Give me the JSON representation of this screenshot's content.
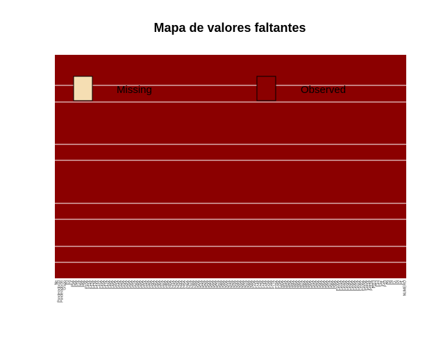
{
  "chart_data": {
    "type": "heatmap",
    "title": "Mapa de valores faltantes",
    "xlabel": "",
    "ylabel": "",
    "legend": {
      "placement": "top",
      "entries": [
        {
          "label": "Missing",
          "color": "#f5deb3"
        },
        {
          "label": "Observed",
          "color": "#8b0000"
        }
      ]
    },
    "colors": {
      "missing": "#f5deb3",
      "observed": "#8b0000",
      "separator": "#ffffff"
    },
    "columns": [
      "Ne",
      "Ponderador33",
      "Ponderador36",
      "Grupo",
      "P3",
      "P4",
      "P5A",
      "P6A",
      "P7A",
      "P8A",
      "P9A",
      "P10A",
      "P11A",
      "P12A",
      "P13A",
      "P14A",
      "P15A",
      "P16A",
      "P17A",
      "P18A",
      "P19A",
      "P20A",
      "P21A",
      "P22A",
      "P23A",
      "P24A",
      "P25A",
      "P26A",
      "P27A",
      "P28A",
      "P29A",
      "P30A",
      "P31A",
      "P32A",
      "P33A",
      "P34A",
      "P35A",
      "P36A",
      "P37A",
      "P38A",
      "P39A",
      "P40A",
      "P41A",
      "P42A",
      "P43A",
      "P44A",
      "P45A",
      "P46A",
      "P47A",
      "P48A",
      "P49A",
      "P50A",
      "P51A",
      "P52A",
      "P53A",
      "P54A",
      "P55A",
      "P56A",
      "P57A",
      "P58A",
      "P59A",
      "P60A",
      "P61A",
      "P62A",
      "P63A",
      "P64A",
      "P65A",
      "P66A",
      "P67A",
      "P68A",
      "P69A",
      "P70A",
      "P71A",
      "P72A",
      "P73A",
      "P74A",
      "P75A",
      "P76A",
      "P77A",
      "P78A",
      "P79A",
      "P80A",
      "P81A",
      "P82A",
      "P83A",
      "P84A",
      "P85A",
      "P86A",
      "P87A",
      "P88A",
      "P89A",
      "P90A",
      "P91A",
      "P92A",
      "P93A",
      "P94A",
      "P95A",
      "P96A",
      "P97A",
      "P98A",
      "P99A",
      "P100A",
      "P101A",
      "P102A",
      "P103A",
      "P104A",
      "P105A",
      "P106A",
      "P107A",
      "P108A",
      "P109A",
      "P110A",
      "P111A",
      "P112A",
      "P113",
      "P13",
      "P12",
      "P11",
      "P10",
      "P9",
      "P8",
      "P7",
      "P6",
      "P2",
      "P1",
      "NUMERO"
    ],
    "missing_count": 0,
    "all_observed": true
  }
}
